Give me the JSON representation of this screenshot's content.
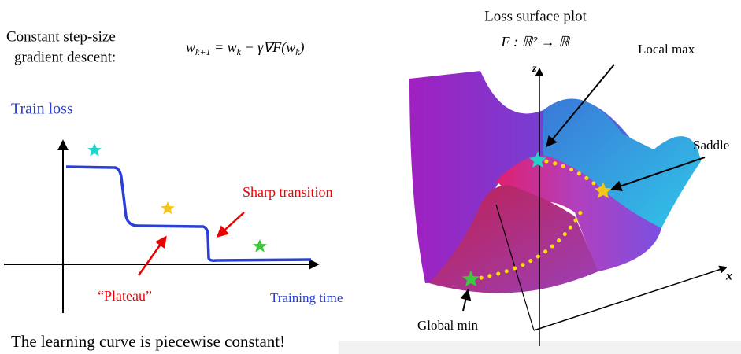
{
  "left": {
    "intro_line1": "Constant step-size",
    "intro_line2": "gradient descent:",
    "formula": [
      "w",
      "k+1",
      " = w",
      "k",
      " − γ∇F(w",
      "k",
      ")"
    ],
    "ylabel": "Train loss",
    "sharp": "Sharp transition",
    "plateau": "“Plateau”",
    "xlabel": "Training time",
    "caption": "The learning curve is piecewise constant!"
  },
  "right": {
    "title": "Loss surface plot",
    "subtitle": "F : ℝ² → ℝ",
    "local_max": "Local max",
    "saddle": "Saddle",
    "global_min": "Global min",
    "z_axis": "z",
    "x_axis": "x"
  }
}
